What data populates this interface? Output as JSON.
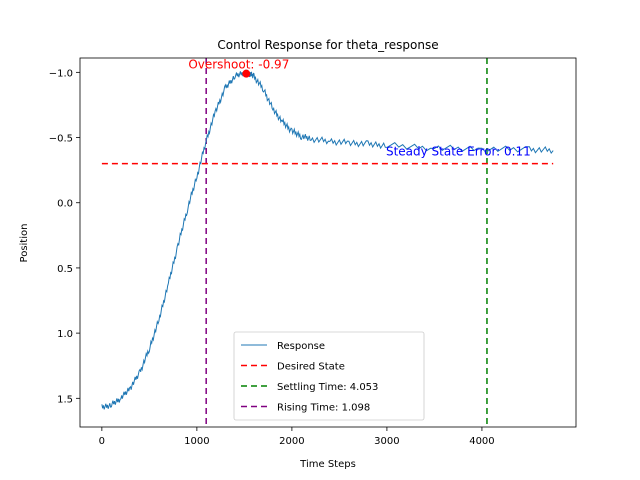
{
  "chart_data": {
    "type": "line",
    "title": "Control Response for theta_response",
    "xlabel": "Time Steps",
    "ylabel": "Position",
    "xlim": [
      -230,
      4990
    ],
    "ylim": [
      1.72,
      -1.11
    ],
    "y_inverted": true,
    "x_ticks": [
      0,
      1000,
      2000,
      3000,
      4000
    ],
    "x_tick_labels": [
      "0",
      "1000",
      "2000",
      "3000",
      "4000"
    ],
    "y_ticks": [
      -1.0,
      -0.5,
      0.0,
      0.5,
      1.0,
      1.5
    ],
    "y_tick_labels": [
      "−1.0",
      "−0.5",
      "0.0",
      "0.5",
      "1.0",
      "1.5"
    ],
    "grid": false,
    "legend_position": "lower center",
    "series": [
      {
        "name": "Response",
        "color": "#1f77b4",
        "style": "solid",
        "x": [
          0,
          100,
          200,
          300,
          400,
          500,
          600,
          700,
          800,
          900,
          1000,
          1100,
          1200,
          1300,
          1400,
          1500,
          1550,
          1600,
          1700,
          1800,
          1900,
          2000,
          2100,
          2200,
          2400,
          2600,
          2800,
          3000,
          3500,
          4000,
          4500,
          4750
        ],
        "y": [
          1.57,
          1.55,
          1.5,
          1.42,
          1.3,
          1.12,
          0.9,
          0.62,
          0.33,
          0.05,
          -0.2,
          -0.48,
          -0.71,
          -0.88,
          -0.97,
          -1.0,
          -0.99,
          -0.97,
          -0.87,
          -0.72,
          -0.62,
          -0.55,
          -0.51,
          -0.49,
          -0.47,
          -0.46,
          -0.45,
          -0.44,
          -0.42,
          -0.41,
          -0.41,
          -0.4
        ]
      },
      {
        "name": "Desired State",
        "color": "#ff0000",
        "style": "dashed",
        "x": [
          0,
          4750
        ],
        "y": [
          -0.3,
          -0.3
        ]
      }
    ],
    "vlines": [
      {
        "name": "Settling Time: 4.053",
        "x": 4053,
        "color": "#008000"
      },
      {
        "name": "Rising Time: 1.098",
        "x": 1098,
        "color": "#800080"
      }
    ],
    "marker": {
      "x": 1520,
      "y": -0.99,
      "color": "#ff0000"
    },
    "annotations": [
      {
        "text": "Overshoot: -0.97",
        "x": 910,
        "y": -1.0,
        "color": "#ff0000"
      },
      {
        "text": "Steady State Error: 0.11",
        "x": 2990,
        "y": -0.33,
        "color": "#0000ff"
      }
    ]
  }
}
